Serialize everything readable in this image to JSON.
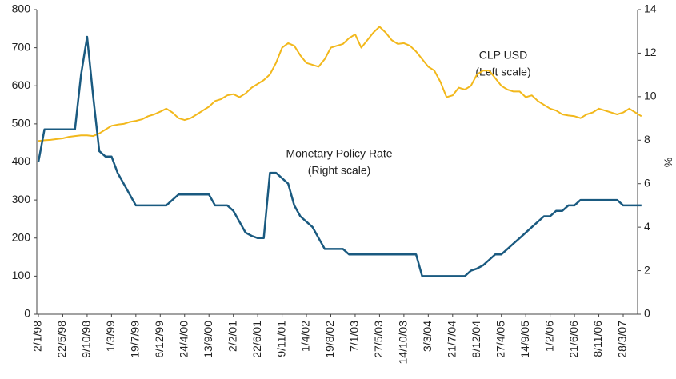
{
  "chart_data": {
    "type": "line",
    "categories": [
      "2/1/98",
      null,
      null,
      null,
      "22/5/98",
      null,
      null,
      null,
      "9/10/98",
      null,
      null,
      null,
      "1/3/99",
      null,
      null,
      null,
      "19/7/99",
      null,
      null,
      null,
      "6/12/99",
      null,
      null,
      null,
      "24/4/00",
      null,
      null,
      null,
      "13/9/00",
      null,
      null,
      null,
      "2/2/01",
      null,
      null,
      null,
      "22/6/01",
      null,
      null,
      null,
      "9/11/01",
      null,
      null,
      null,
      "1/4/02",
      null,
      null,
      null,
      "19/8/02",
      null,
      null,
      null,
      "7/1/03",
      null,
      null,
      null,
      "27/5/03",
      null,
      null,
      null,
      "14/10/03",
      null,
      null,
      null,
      "3/3/04",
      null,
      null,
      null,
      "21/7/04",
      null,
      null,
      null,
      "8/12/04",
      null,
      null,
      null,
      "27/4/05",
      null,
      null,
      null,
      "14/9/05",
      null,
      null,
      null,
      "1/2/06",
      null,
      null,
      null,
      "21/6/06",
      null,
      null,
      null,
      "8/11/06",
      null,
      null,
      null,
      "28/3/07",
      null,
      null,
      null
    ],
    "series": [
      {
        "name": "CLP USD",
        "color": "#f2b81c",
        "axis": "y",
        "values": [
          455,
          457,
          458,
          460,
          462,
          466,
          468,
          470,
          470,
          468,
          475,
          485,
          495,
          498,
          500,
          505,
          508,
          512,
          520,
          525,
          532,
          540,
          530,
          515,
          510,
          515,
          525,
          535,
          545,
          560,
          565,
          575,
          578,
          570,
          580,
          595,
          605,
          615,
          630,
          660,
          700,
          712,
          705,
          680,
          660,
          655,
          650,
          670,
          700,
          705,
          710,
          725,
          735,
          700,
          720,
          740,
          755,
          740,
          720,
          710,
          712,
          705,
          690,
          670,
          650,
          640,
          610,
          570,
          575,
          595,
          590,
          600,
          630,
          640,
          640,
          620,
          600,
          590,
          585,
          585,
          570,
          575,
          560,
          550,
          540,
          535,
          525,
          522,
          520,
          515,
          525,
          530,
          540,
          535,
          530,
          525,
          530,
          540,
          530,
          520
        ]
      },
      {
        "name": "Monetary Policy Rate",
        "color": "#1a5a80",
        "axis": "y2",
        "values": [
          7,
          8.5,
          8.5,
          8.5,
          8.5,
          8.5,
          8.5,
          11,
          12.75,
          10,
          7.5,
          7.25,
          7.25,
          6.5,
          6,
          5.5,
          5,
          5,
          5,
          5,
          5,
          5,
          5.25,
          5.5,
          5.5,
          5.5,
          5.5,
          5.5,
          5.5,
          5,
          5,
          5,
          4.75,
          4.25,
          3.75,
          3.6,
          3.5,
          3.5,
          6.5,
          6.5,
          6.25,
          6,
          5,
          4.5,
          4.25,
          4,
          3.5,
          3,
          3,
          3,
          3,
          2.75,
          2.75,
          2.75,
          2.75,
          2.75,
          2.75,
          2.75,
          2.75,
          2.75,
          2.75,
          2.75,
          2.75,
          1.75,
          1.75,
          1.75,
          1.75,
          1.75,
          1.75,
          1.75,
          1.75,
          2,
          2.1,
          2.25,
          2.5,
          2.75,
          2.75,
          3,
          3.25,
          3.5,
          3.75,
          4,
          4.25,
          4.5,
          4.5,
          4.75,
          4.75,
          5,
          5,
          5.25,
          5.25,
          5.25,
          5.25,
          5.25,
          5.25,
          5.25,
          5,
          5,
          5,
          5
        ]
      }
    ],
    "annotations": [
      "CLP USD",
      "(Left scale)",
      "Monetary Policy Rate",
      "(Right scale)"
    ],
    "y2label": "%",
    "ylim": [
      0,
      800
    ],
    "yticks": [
      0,
      100,
      200,
      300,
      400,
      500,
      600,
      700,
      800
    ],
    "y2lim": [
      0,
      14
    ],
    "y2ticks": [
      0,
      2,
      4,
      6,
      8,
      10,
      12,
      14
    ],
    "grid": false
  }
}
